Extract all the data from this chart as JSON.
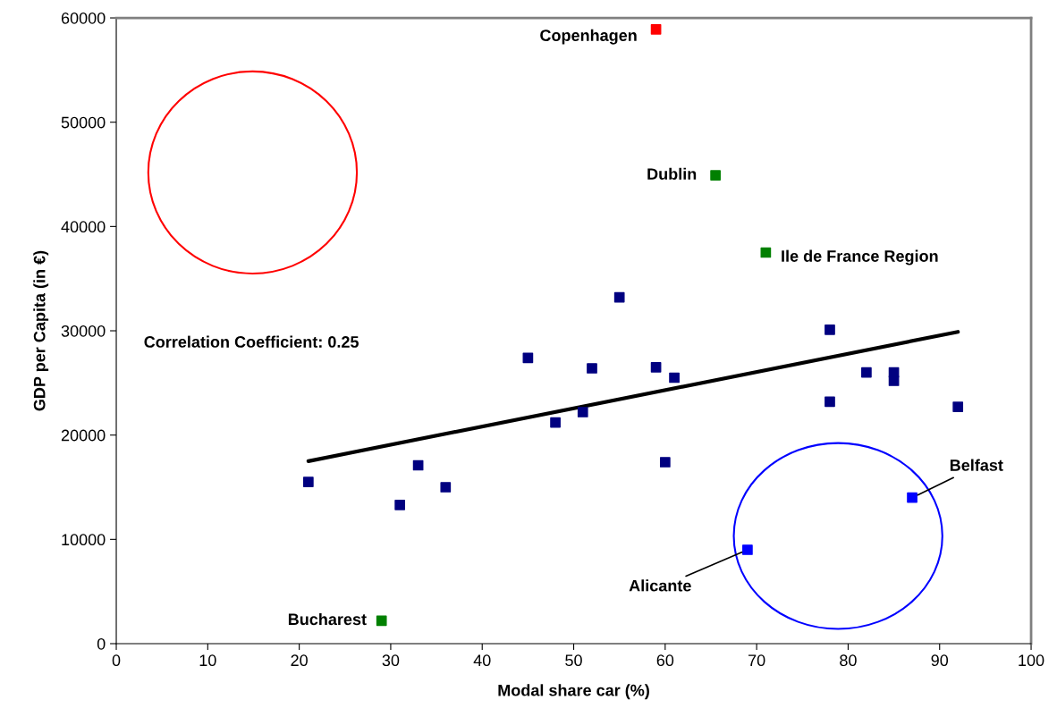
{
  "chart_data": {
    "type": "scatter",
    "xlabel": "Modal share car (%)",
    "ylabel": "GDP per Capita (in €)",
    "xlim": [
      0,
      100
    ],
    "xticks": [
      0,
      10,
      20,
      30,
      40,
      50,
      60,
      70,
      80,
      90,
      100
    ],
    "ylim": [
      0,
      60000
    ],
    "yticks": [
      0,
      10000,
      20000,
      30000,
      40000,
      50000,
      60000
    ],
    "grid": false,
    "marker": "square",
    "series": [
      {
        "color": "#000080",
        "x": [
          21,
          31,
          33,
          36,
          45,
          48,
          51,
          52,
          55,
          59,
          60,
          61,
          78,
          78,
          82,
          85,
          85,
          92
        ],
        "values": [
          15500,
          13300,
          17100,
          15000,
          27400,
          21200,
          22200,
          26400,
          33200,
          26500,
          17400,
          25500,
          30100,
          23200,
          26000,
          26000,
          25200,
          22700
        ]
      },
      {
        "color": "#0000ff",
        "x": [
          69,
          87
        ],
        "values": [
          9000,
          14000
        ]
      },
      {
        "color": "#008000",
        "x": [
          65.5,
          71,
          29
        ],
        "values": [
          44900,
          37500,
          2200
        ]
      },
      {
        "color": "#ff0000",
        "x": [
          59
        ],
        "values": [
          58900
        ]
      },
      {
        "type": "line",
        "color": "#000000",
        "marker": "none",
        "x": [
          21,
          92
        ],
        "values": [
          17500,
          29900
        ]
      }
    ],
    "annotations": [
      {
        "text": "Copenhagen",
        "x": 59,
        "y": 58900
      },
      {
        "text": "Dublin",
        "x": 65.5,
        "y": 44900
      },
      {
        "text": "Ile de France Region",
        "x": 71,
        "y": 37500
      },
      {
        "text": "Belfast",
        "x": 87,
        "y": 14000
      },
      {
        "text": "Alicante",
        "x": 69,
        "y": 9000
      },
      {
        "text": "Bucharest",
        "x": 29,
        "y": 2200
      },
      "Correlation Coefficient: 0.25"
    ]
  }
}
